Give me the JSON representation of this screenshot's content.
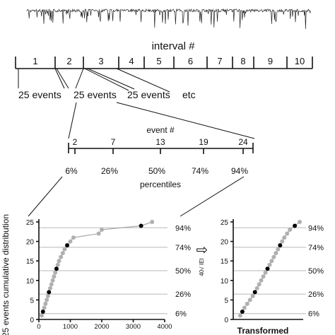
{
  "top_bar": {
    "title": "interval #",
    "intervals": [
      "1",
      "2",
      "3",
      "4",
      "5",
      "6",
      "7",
      "8",
      "9",
      "10"
    ]
  },
  "events_row": {
    "labels": [
      "25 events",
      "25 events",
      "25 events",
      "etc"
    ]
  },
  "event_axis": {
    "title": "event #",
    "ticks": [
      "2",
      "7",
      "13",
      "19",
      "24"
    ],
    "percents": [
      "6%",
      "26%",
      "50%",
      "74%",
      "94%"
    ],
    "footer": "percentiles"
  },
  "transform": {
    "label": "40√ IEI",
    "arrow": "⇨"
  },
  "chart_data": [
    {
      "type": "scatter",
      "ylabel": "25 events cumulative distribution",
      "xlabel": "",
      "xlim": [
        0,
        4000
      ],
      "ylim": [
        0,
        25
      ],
      "xticks": [
        "0",
        "1000",
        "2000",
        "3000",
        "4000"
      ],
      "yticks": [
        "0",
        "5",
        "10",
        "15",
        "20",
        "25"
      ],
      "percentile_lines": [
        {
          "y": 1.5,
          "label": "6%"
        },
        {
          "y": 6.5,
          "label": "26%"
        },
        {
          "y": 12.5,
          "label": "50%"
        },
        {
          "y": 18.5,
          "label": "74%"
        },
        {
          "y": 23.5,
          "label": "94%"
        }
      ],
      "series": [
        {
          "x": [
            90,
            130,
            170,
            210,
            250,
            290,
            320,
            360,
            400,
            440,
            480,
            520,
            560,
            600,
            640,
            700,
            760,
            820,
            900,
            1000,
            1100,
            1900,
            2000,
            3250,
            3600
          ],
          "y": [
            1,
            2,
            3,
            4,
            5,
            6,
            7,
            8,
            9,
            10,
            11,
            12,
            13,
            14,
            15,
            16,
            17,
            18,
            19,
            20,
            21,
            22,
            23,
            24,
            25
          ],
          "highlight": [
            2,
            7,
            13,
            19,
            24
          ]
        }
      ]
    },
    {
      "type": "scatter",
      "xlabel": "Transformed",
      "ylabel": "",
      "xlim": [
        0,
        1
      ],
      "ylim": [
        0,
        25
      ],
      "yticks": [
        "0",
        "5",
        "10",
        "15",
        "20",
        "25"
      ],
      "percentile_lines": [
        {
          "y": 1.5,
          "label": "6%"
        },
        {
          "y": 6.5,
          "label": "26%"
        },
        {
          "y": 12.5,
          "label": "50%"
        },
        {
          "y": 18.5,
          "label": "74%"
        },
        {
          "y": 23.5,
          "label": "94%"
        }
      ],
      "series": [
        {
          "x": [
            0.1,
            0.13,
            0.16,
            0.2,
            0.24,
            0.28,
            0.31,
            0.34,
            0.37,
            0.4,
            0.43,
            0.46,
            0.49,
            0.52,
            0.55,
            0.58,
            0.61,
            0.64,
            0.67,
            0.7,
            0.73,
            0.77,
            0.81,
            0.88,
            0.95
          ],
          "y": [
            1,
            2,
            3,
            4,
            5,
            6,
            7,
            8,
            9,
            10,
            11,
            12,
            13,
            14,
            15,
            16,
            17,
            18,
            19,
            20,
            21,
            22,
            23,
            24,
            25
          ],
          "highlight": [
            2,
            7,
            13,
            19,
            24
          ]
        }
      ]
    }
  ]
}
